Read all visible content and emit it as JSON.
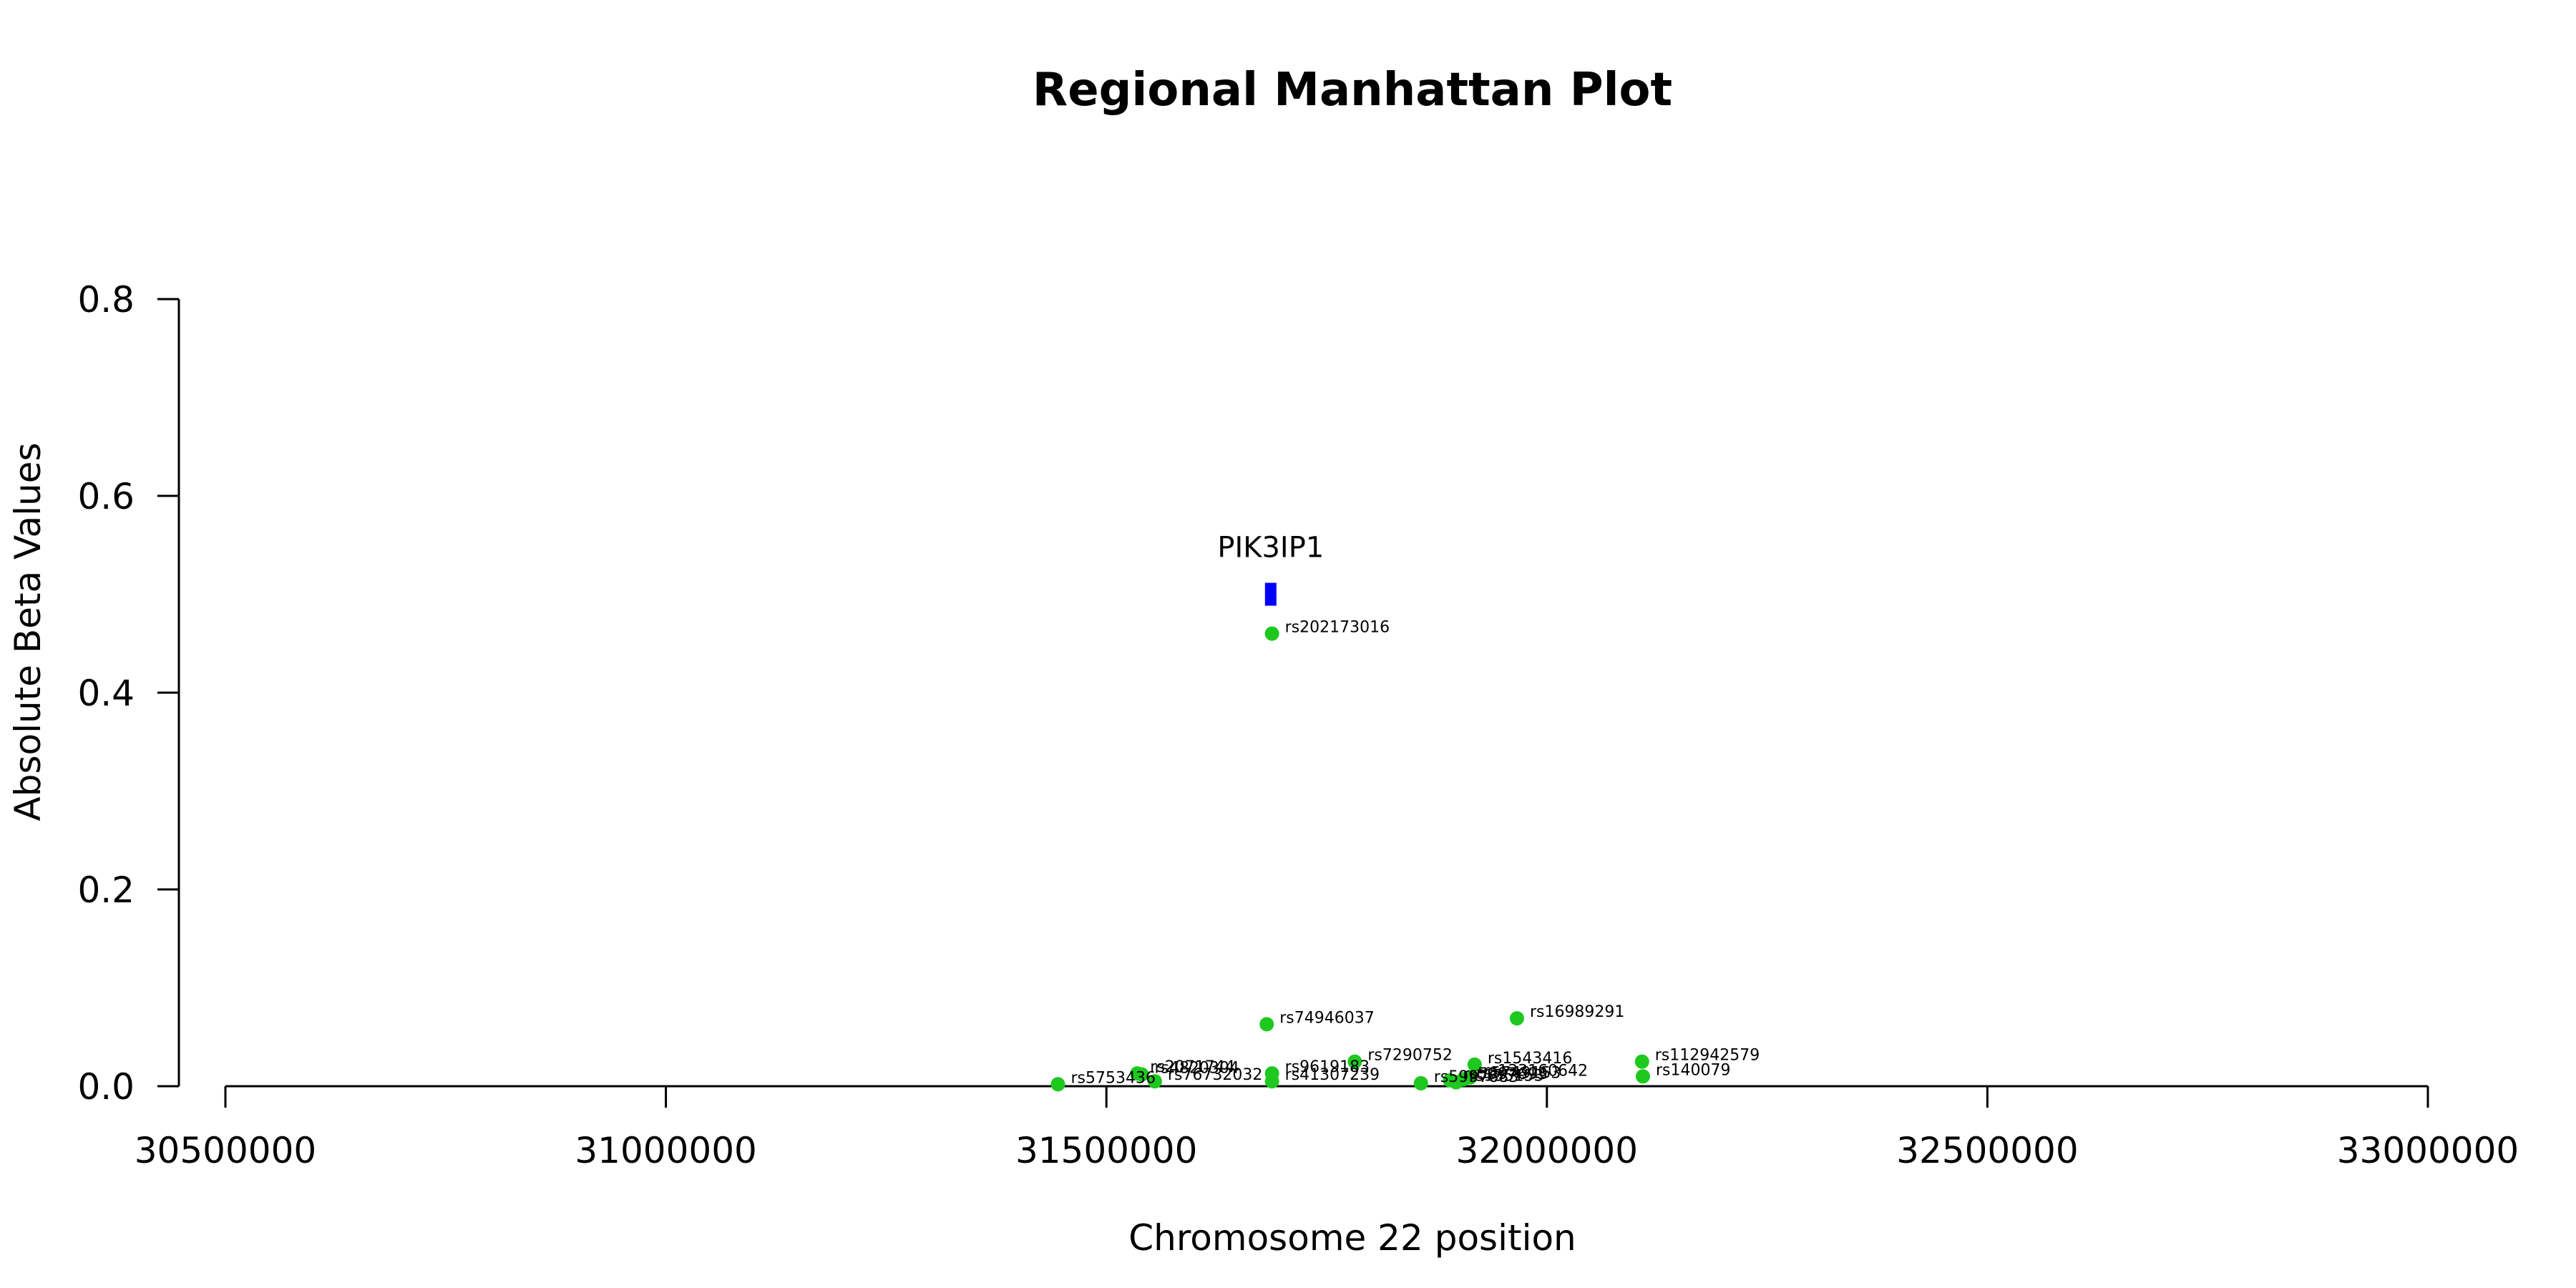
{
  "chart_data": {
    "type": "scatter",
    "title": "Regional Manhattan Plot",
    "xlabel": "Chromosome 22 position",
    "ylabel": "Absolute Beta Values",
    "xlim": [
      30500000,
      33000000
    ],
    "ylim": [
      0,
      0.8
    ],
    "x_ticks": [
      "30500000",
      "31000000",
      "31500000",
      "32000000",
      "32500000",
      "33000000"
    ],
    "y_ticks": [
      "0.0",
      "0.2",
      "0.4",
      "0.6",
      "0.8"
    ],
    "gene": {
      "name": "PIK3IP1",
      "start": 31680000,
      "end": 31693000,
      "y": 0.5,
      "color": "#0000ff"
    },
    "point_color": "#1ec81e",
    "points": [
      {
        "rs": "rs202173016",
        "x": 31688000,
        "y": 0.46
      },
      {
        "rs": "rs74946037",
        "x": 31682000,
        "y": 0.063
      },
      {
        "rs": "rs16989291",
        "x": 31966000,
        "y": 0.069
      },
      {
        "rs": "rs112942579",
        "x": 32108000,
        "y": 0.025
      },
      {
        "rs": "rs140079",
        "x": 32109000,
        "y": 0.01
      },
      {
        "rs": "rs1543416",
        "x": 31918000,
        "y": 0.022
      },
      {
        "rs": "rs7290752",
        "x": 31782000,
        "y": 0.025
      },
      {
        "rs": "rs9619183",
        "x": 31688000,
        "y": 0.013
      },
      {
        "rs": "rs41307239",
        "x": 31688000,
        "y": 0.005
      },
      {
        "rs": "rs5753436",
        "x": 31445000,
        "y": 0.002
      },
      {
        "rs": "rs2071744",
        "x": 31535000,
        "y": 0.013
      },
      {
        "rs": "rs4820304",
        "x": 31540000,
        "y": 0.012
      },
      {
        "rs": "rs76732032",
        "x": 31555000,
        "y": 0.005
      },
      {
        "rs": "rs5997683",
        "x": 31857000,
        "y": 0.003
      },
      {
        "rs": "rs5997693",
        "x": 31890000,
        "y": 0.006
      },
      {
        "rs": "rs135153",
        "x": 31897000,
        "y": 0.004
      },
      {
        "rs": "rs5749153",
        "x": 31905000,
        "y": 0.007
      },
      {
        "rs": "rs133160642",
        "x": 31913000,
        "y": 0.009
      }
    ]
  }
}
